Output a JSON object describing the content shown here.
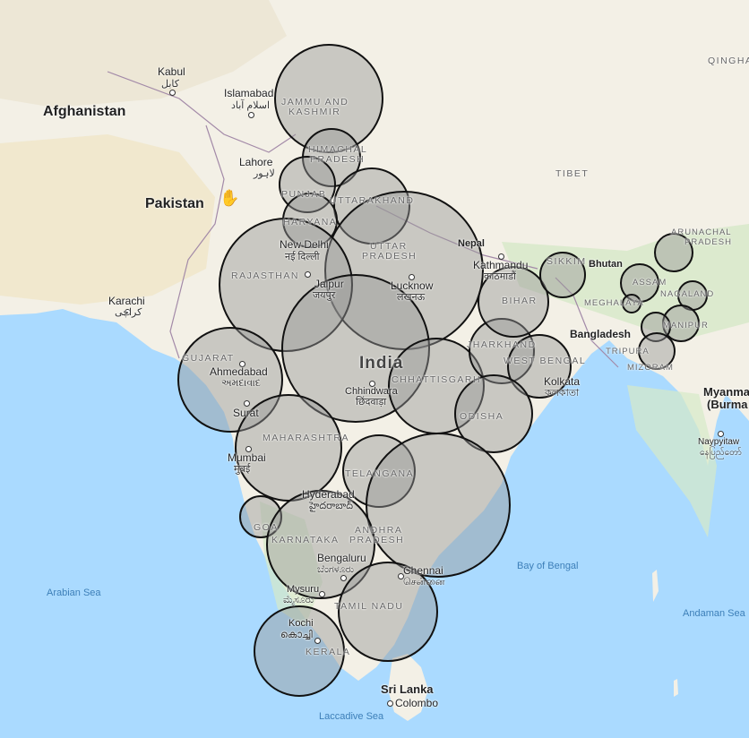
{
  "map": {
    "countries": {
      "afghanistan": "Afghanistan",
      "pakistan": "Pakistan",
      "india": "India",
      "nepal": "Nepal",
      "bhutan": "Bhutan",
      "bangladesh": "Bangladesh",
      "myanmar_1": "Myanma",
      "myanmar_2": "(Burma",
      "sri_lanka": "Sri Lanka"
    },
    "cities": {
      "kabul": "Kabul",
      "kabul_native": "کابل",
      "islamabad": "Islamabad",
      "islamabad_native": "اسلام آباد",
      "lahore": "Lahore",
      "lahore_native": "لاہور",
      "new_delhi": "New Delhi",
      "new_delhi_native": "नई दिल्ली",
      "jaipur": "Jaipur",
      "jaipur_native": "जयपुर",
      "lucknow": "Lucknow",
      "lucknow_native": "लखनऊ",
      "kathmandu": "Kathmandu",
      "kathmandu_native": "काठमाडौं",
      "karachi": "Karachi",
      "karachi_native": "کراچی",
      "ahmedabad": "Ahmedabad",
      "ahmedabad_native": "અમદાવાદ",
      "surat": "Surat",
      "chhindwara": "Chhindwara",
      "chhindwara_native": "छिंदवाड़ा",
      "kolkata": "Kolkata",
      "kolkata_native": "কলকাতা",
      "mumbai": "Mumbai",
      "mumbai_native": "मुंबई",
      "hyderabad": "Hyderabad",
      "hyderabad_native": "హైదరాబాద్",
      "bengaluru": "Bengaluru",
      "bengaluru_native": "ಬೆಂಗಳೂರು",
      "chennai": "Chennai",
      "chennai_native": "சென்னை",
      "mysuru": "Mysuru",
      "mysuru_native": "ಮೈಸೂರು",
      "kochi": "Kochi",
      "kochi_native": "കൊച്ചി",
      "colombo": "Colombo",
      "naypyitaw": "Naypyitaw",
      "naypyitaw_native": "နေပြည်တော်"
    },
    "regions": {
      "jammu_kashmir_1": "JAMMU AND",
      "jammu_kashmir_2": "KASHMIR",
      "himachal_1": "HIMACHAL",
      "himachal_2": "PRADESH",
      "punjab": "PUNJAB",
      "uttarakhand": "UTTARAKHAND",
      "haryana": "HARYANA",
      "uttar_pradesh_1": "UTTAR",
      "uttar_pradesh_2": "PRADESH",
      "rajasthan": "RAJASTHAN",
      "gujarat": "GUJARAT",
      "chhattisgarh": "CHHATTISGARH",
      "jharkhand": "JHARKHAND",
      "west_bengal": "WEST BENGAL",
      "odisha": "ODISHA",
      "bihar": "BIHAR",
      "sikkim": "SIKKIM",
      "maharashtra": "MAHARASHTRA",
      "telangana": "TELANGANA",
      "goa": "GOA",
      "karnataka": "KARNATAKA",
      "andhra_pradesh_1": "ANDHRA",
      "andhra_pradesh_2": "PRADESH",
      "tamil_nadu": "TAMIL NADU",
      "kerala": "KERALA",
      "tibet": "TIBET",
      "qinghai": "QINGHAI",
      "arunachal_1": "ARUNACHAL",
      "arunachal_2": "PRADESH",
      "assam": "ASSAM",
      "nagaland": "NAGALAND",
      "meghalaya": "MEGHALAYA",
      "manipur": "MANIPUR",
      "tripura": "TRIPURA",
      "mizoram": "MIZORAM"
    },
    "seas": {
      "arabian_sea": "Arabian Sea",
      "bay_of_bengal": "Bay of Bengal",
      "andaman_sea": "Andaman Sea",
      "laccadive_sea": "Laccadive Sea"
    },
    "colors": {
      "water": "#aadaff",
      "land": "#f3f0e6",
      "desert": "#f1e8c8",
      "green": "#cfe6c2",
      "bubble_fill": "rgba(150,150,150,0.45)",
      "bubble_stroke": "#111111"
    },
    "cursor_icon": "hand-cursor-icon"
  }
}
